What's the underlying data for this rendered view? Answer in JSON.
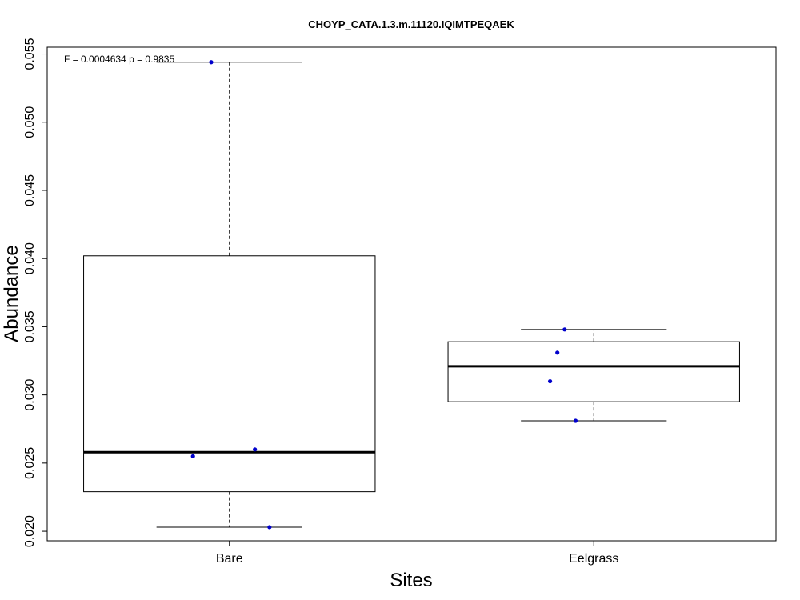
{
  "chart_data": {
    "type": "box",
    "title": "CHOYP_CATA.1.3.m.11120.IQIMTPEQAEK",
    "xlabel": "Sites",
    "ylabel": "Abundance",
    "annotation": "F = 0.0004634 p = 0.9835",
    "ylim": [
      0.0193,
      0.0555
    ],
    "yticks": [
      0.02,
      0.025,
      0.03,
      0.035,
      0.04,
      0.045,
      0.05,
      0.055
    ],
    "ytick_labels": [
      "0.020",
      "0.025",
      "0.030",
      "0.035",
      "0.040",
      "0.045",
      "0.050",
      "0.055"
    ],
    "grid": false,
    "categories": [
      "Bare",
      "Eelgrass"
    ],
    "boxes": [
      {
        "category": "Bare",
        "whisker_low": 0.0203,
        "q1": 0.0229,
        "median": 0.0258,
        "q3": 0.0402,
        "whisker_high": 0.0544
      },
      {
        "category": "Eelgrass",
        "whisker_low": 0.0281,
        "q1": 0.0295,
        "median": 0.0321,
        "q3": 0.0339,
        "whisker_high": 0.0348
      }
    ],
    "points": [
      {
        "category": "Bare",
        "jitter": -0.05,
        "y": 0.0544
      },
      {
        "category": "Bare",
        "jitter": 0.07,
        "y": 0.026
      },
      {
        "category": "Bare",
        "jitter": -0.1,
        "y": 0.0255
      },
      {
        "category": "Bare",
        "jitter": 0.11,
        "y": 0.0203
      },
      {
        "category": "Eelgrass",
        "jitter": -0.08,
        "y": 0.0348
      },
      {
        "category": "Eelgrass",
        "jitter": -0.1,
        "y": 0.0331
      },
      {
        "category": "Eelgrass",
        "jitter": -0.12,
        "y": 0.031
      },
      {
        "category": "Eelgrass",
        "jitter": -0.05,
        "y": 0.0281
      }
    ],
    "colors": {
      "points": "#0000cc",
      "box": "#000000"
    }
  }
}
